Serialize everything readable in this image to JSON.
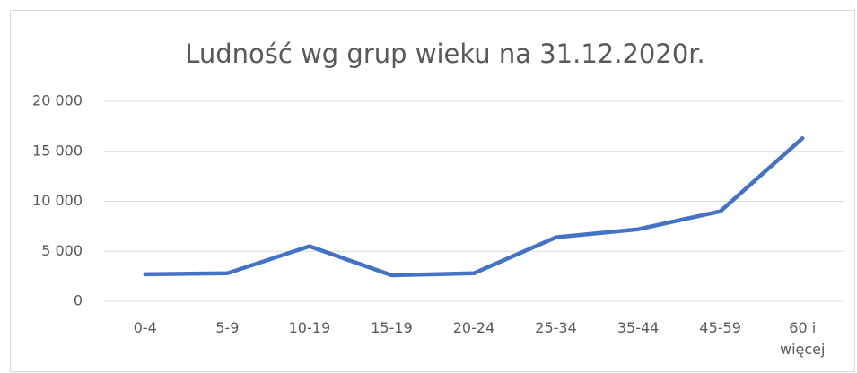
{
  "chart_data": {
    "type": "line",
    "title": "Ludność wg grup wieku na 31.12.2020r.",
    "categories": [
      "0-4",
      "5-9",
      "10-19",
      "15-19",
      "20-24",
      "25-34",
      "35-44",
      "45-59",
      "60 i więcej"
    ],
    "series": [
      {
        "name": "Ludność",
        "color": "#4472c4",
        "values": [
          2700,
          2800,
          5500,
          2600,
          2800,
          6400,
          7200,
          9000,
          16300
        ]
      }
    ],
    "ylim": [
      0,
      20000
    ],
    "yticks": [
      0,
      {
        "value": 5000,
        "label": "5 000"
      },
      {
        "value": 10000,
        "label": "10 000"
      },
      {
        "value": 15000,
        "label": "15 000"
      },
      {
        "value": 20000,
        "label": "20 000"
      }
    ],
    "grid": true
  }
}
